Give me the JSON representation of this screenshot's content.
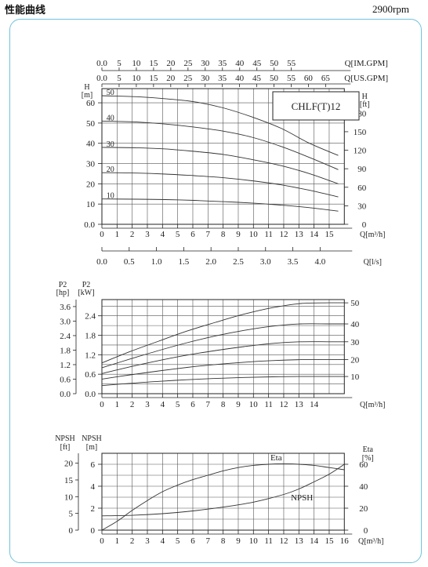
{
  "header": {
    "title": "性能曲线",
    "speed": "2900rpm"
  },
  "chart_data": [
    {
      "type": "line",
      "name": "head-chart",
      "model_label": "CHLF(T)12",
      "x_ticks": [
        "0",
        "1",
        "2",
        "3",
        "4",
        "5",
        "6",
        "7",
        "8",
        "9",
        "10",
        "11",
        "12",
        "13",
        "14",
        "15"
      ],
      "x_label": "Q[m³/h]",
      "y_left_label_top": "H",
      "y_left_label_unit": "[m]",
      "y_left_ticks": [
        "0.0",
        "10",
        "20",
        "30",
        "40",
        "50",
        "60"
      ],
      "y_left_range": [
        0,
        67
      ],
      "y_right_label_top": "H",
      "y_right_label_unit": "[ft]",
      "y_right_ticks": [
        "0",
        "30",
        "60",
        "90",
        "120",
        "150",
        "180"
      ],
      "top_axis_1": {
        "label": "Q[IM.GPM]",
        "ticks": [
          "0.0",
          "5",
          "10",
          "15",
          "20",
          "25",
          "30",
          "35",
          "40",
          "45",
          "50",
          "55"
        ],
        "step": 1.1365
      },
      "top_axis_2": {
        "label": "Q[US.GPM]",
        "ticks": [
          "0.0",
          "5",
          "10",
          "15",
          "20",
          "25",
          "30",
          "35",
          "40",
          "45",
          "50",
          "55",
          "60",
          "65"
        ],
        "step": 1.1356
      },
      "bottom_axis_2": {
        "label": "Q[l/s]",
        "ticks": [
          "0.0",
          "0.5",
          "1.0",
          "1.5",
          "2.0",
          "2.5",
          "3.0",
          "3.5",
          "4.0"
        ]
      },
      "series": [
        {
          "name": "50",
          "x": [
            0,
            2,
            4,
            6,
            8,
            10,
            12,
            14,
            16
          ],
          "y": [
            63.5,
            63,
            62,
            60.5,
            57.5,
            53,
            47.5,
            40,
            34
          ]
        },
        {
          "name": "40",
          "x": [
            0,
            2,
            4,
            6,
            8,
            10,
            12,
            14,
            16
          ],
          "y": [
            51,
            50.5,
            49.5,
            48,
            46,
            43,
            38.5,
            33,
            27
          ]
        },
        {
          "name": "30",
          "x": [
            0,
            2,
            4,
            6,
            8,
            10,
            12,
            14,
            16
          ],
          "y": [
            38,
            37.8,
            37.2,
            36,
            34.5,
            32,
            29,
            25,
            20
          ]
        },
        {
          "name": "20",
          "x": [
            0,
            2,
            4,
            6,
            8,
            10,
            12,
            14,
            16
          ],
          "y": [
            25.5,
            25.3,
            24.8,
            24,
            23,
            21.5,
            19.5,
            16.8,
            13.5
          ]
        },
        {
          "name": "10",
          "x": [
            0,
            2,
            4,
            6,
            8,
            10,
            12,
            14,
            16
          ],
          "y": [
            12.5,
            12.4,
            12.2,
            11.8,
            11.2,
            10.5,
            9.5,
            8.2,
            6.5
          ]
        }
      ]
    },
    {
      "type": "line",
      "name": "power-chart",
      "x_ticks": [
        "0",
        "1",
        "2",
        "3",
        "4",
        "5",
        "6",
        "7",
        "8",
        "9",
        "10",
        "11",
        "12",
        "13",
        "14"
      ],
      "x_label": "Q[m³/h]",
      "y_left_label_1": "P2",
      "y_left_unit_1": "[hp]",
      "y_left_ticks_1": [
        "0.0",
        "0.6",
        "1.2",
        "1.8",
        "2.4",
        "3.0",
        "3.6"
      ],
      "y_left_label_2": "P2",
      "y_left_unit_2": "[kW]",
      "y_left_ticks_2": [
        "0.0",
        "0.6",
        "1.2",
        "1.8",
        "2.4"
      ],
      "y_range_kw": [
        0,
        2.9
      ],
      "series": [
        {
          "name": "50",
          "x": [
            0,
            2,
            4,
            6,
            8,
            10,
            12,
            14,
            16
          ],
          "y": [
            0.95,
            1.3,
            1.62,
            1.93,
            2.2,
            2.45,
            2.65,
            2.78,
            2.8
          ]
        },
        {
          "name": "40",
          "x": [
            0,
            2,
            4,
            6,
            8,
            10,
            12,
            14,
            16
          ],
          "y": [
            0.8,
            1.07,
            1.33,
            1.57,
            1.78,
            1.95,
            2.08,
            2.15,
            2.15
          ]
        },
        {
          "name": "30",
          "x": [
            0,
            2,
            4,
            6,
            8,
            10,
            12,
            14,
            16
          ],
          "y": [
            0.62,
            0.83,
            1.02,
            1.19,
            1.33,
            1.45,
            1.55,
            1.6,
            1.6
          ]
        },
        {
          "name": "20",
          "x": [
            0,
            2,
            4,
            6,
            8,
            10,
            12,
            14,
            16
          ],
          "y": [
            0.45,
            0.58,
            0.7,
            0.81,
            0.9,
            0.97,
            1.02,
            1.05,
            1.05
          ]
        },
        {
          "name": "10",
          "x": [
            0,
            2,
            4,
            6,
            8,
            10,
            12,
            14,
            16
          ],
          "y": [
            0.25,
            0.32,
            0.38,
            0.43,
            0.47,
            0.5,
            0.52,
            0.53,
            0.53
          ]
        }
      ]
    },
    {
      "type": "line",
      "name": "npsh-eta-chart",
      "x_ticks": [
        "0",
        "1",
        "2",
        "3",
        "4",
        "5",
        "6",
        "7",
        "8",
        "9",
        "10",
        "11",
        "12",
        "13",
        "14",
        "15",
        "16"
      ],
      "x_label": "Q[m³/h]",
      "y_left_label_1": "NPSH",
      "y_left_unit_1": "[ft]",
      "y_left_ticks_1": [
        "0",
        "5",
        "10",
        "15",
        "20"
      ],
      "y_left_label_2": "NPSH",
      "y_left_unit_2": "[m]",
      "y_left_ticks_2": [
        "0",
        "2",
        "4",
        "6"
      ],
      "y_range_m": [
        0,
        7
      ],
      "y_right_label": "Eta",
      "y_right_unit": "[%]",
      "y_right_ticks": [
        "0",
        "20",
        "40",
        "60"
      ],
      "series": [
        {
          "name": "Eta",
          "axis": "right",
          "x": [
            0,
            1,
            2,
            3,
            4,
            5,
            6,
            7,
            8,
            9,
            10,
            11,
            12,
            13,
            14,
            15,
            16
          ],
          "y": [
            0,
            8,
            18,
            27,
            35,
            41,
            46,
            50,
            54,
            57,
            59,
            60,
            60.5,
            60,
            59,
            57,
            55
          ]
        },
        {
          "name": "NPSH",
          "axis": "left",
          "x": [
            0,
            2,
            4,
            6,
            8,
            10,
            12,
            13,
            14,
            15,
            16
          ],
          "y": [
            1.3,
            1.35,
            1.5,
            1.75,
            2.1,
            2.55,
            3.25,
            3.75,
            4.4,
            5.1,
            6
          ]
        }
      ]
    }
  ]
}
